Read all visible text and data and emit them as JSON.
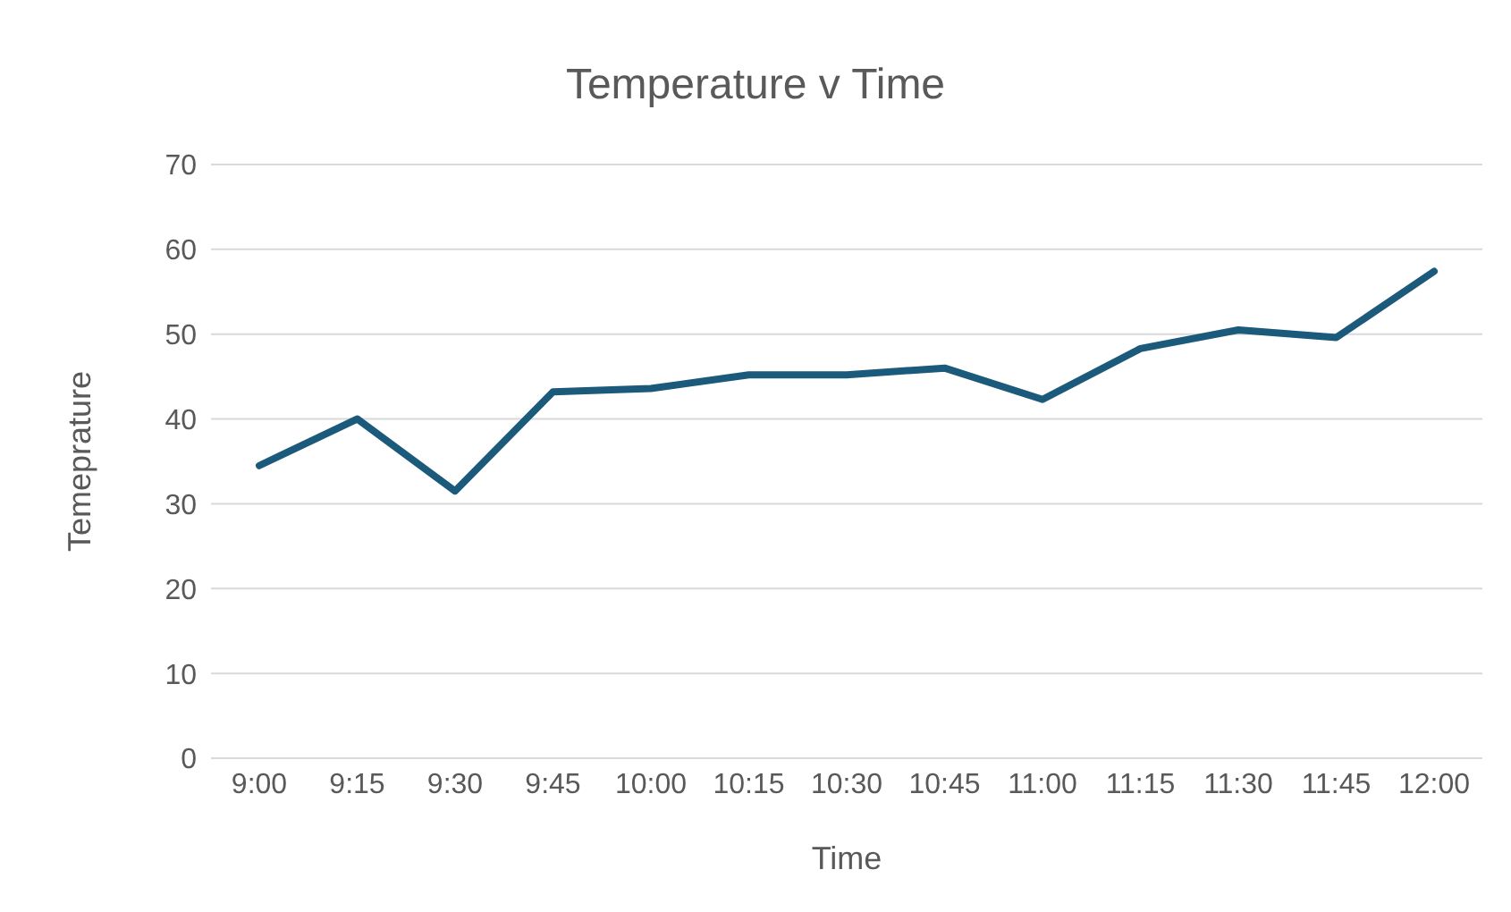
{
  "chart_data": {
    "type": "line",
    "title": "Temperature v Time",
    "xlabel": "Time",
    "ylabel": "Temeprature",
    "categories": [
      "9:00",
      "9:15",
      "9:30",
      "9:45",
      "10:00",
      "10:15",
      "10:30",
      "10:45",
      "11:00",
      "11:15",
      "11:30",
      "11:45",
      "12:00"
    ],
    "series": [
      {
        "color": "#1b5a7a",
        "values": [
          34.5,
          40,
          31.5,
          43.2,
          43.6,
          45.2,
          45.2,
          46,
          42.3,
          48.3,
          50.5,
          49.6,
          57.4
        ]
      }
    ],
    "ylim": [
      0,
      70
    ],
    "yticks": [
      0,
      10,
      20,
      30,
      40,
      50,
      60,
      70
    ],
    "grid": "y",
    "legend": false,
    "marker": "none",
    "line_style": "solid"
  }
}
